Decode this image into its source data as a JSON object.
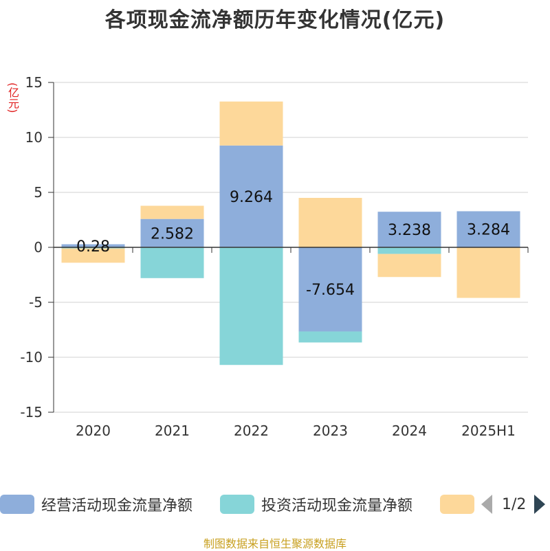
{
  "title": "各项现金流净额历年变化情况(亿元)",
  "footer": "制图数据来自恒生聚源数据库",
  "legend": {
    "items": [
      {
        "name": "经营活动现金流量净额",
        "color": "#8eaedb"
      },
      {
        "name": "投资活动现金流量净额",
        "color": "#86d5d8"
      },
      {
        "name": "",
        "color": "#fdd89a"
      }
    ],
    "page": "1/2"
  },
  "chart_data": {
    "type": "bar",
    "stacked": true,
    "title": "各项现金流净额历年变化情况(亿元)",
    "ylabel": "(亿元)",
    "xlabel": "",
    "ylim": [
      -15,
      15
    ],
    "yticks": [
      15,
      10,
      5,
      0,
      -5,
      -10,
      -15
    ],
    "grid": true,
    "legend_position": "bottom",
    "categories": [
      "2020",
      "2021",
      "2022",
      "2023",
      "2024",
      "2025H1"
    ],
    "series": [
      {
        "name": "经营活动现金流量净额",
        "color": "#8eaedb",
        "values": [
          0.28,
          2.582,
          9.264,
          -7.654,
          3.238,
          3.284
        ],
        "labels": [
          "0.28",
          "2.582",
          "9.264",
          "-7.654",
          "3.238",
          "3.284"
        ]
      },
      {
        "name": "投资活动现金流量净额",
        "color": "#86d5d8",
        "values": [
          -0.1,
          -2.8,
          -10.7,
          -1.0,
          -0.6,
          0
        ]
      },
      {
        "color": "#fdd89a",
        "values": [
          -1.3,
          1.2,
          4.0,
          4.5,
          -2.1,
          -4.6
        ]
      }
    ]
  }
}
